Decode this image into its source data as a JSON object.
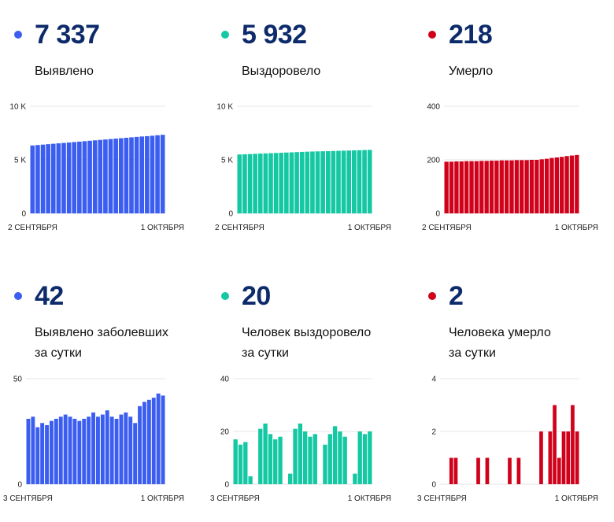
{
  "colors": {
    "blue": "#3b5ef0",
    "green": "#13c8a2",
    "red": "#d0021b",
    "navy": "#0d2b6b"
  },
  "panels": [
    {
      "value": "7 337",
      "label_lines": [
        "Выявлено"
      ],
      "color": "#3b5ef0"
    },
    {
      "value": "5 932",
      "label_lines": [
        "Выздоровело"
      ],
      "color": "#13c8a2"
    },
    {
      "value": "218",
      "label_lines": [
        "Умерло"
      ],
      "color": "#d0021b"
    },
    {
      "value": "42",
      "label_lines": [
        "Выявлено заболевших",
        "за сутки"
      ],
      "color": "#3b5ef0"
    },
    {
      "value": "20",
      "label_lines": [
        "Человек выздоровело",
        "за сутки"
      ],
      "color": "#13c8a2"
    },
    {
      "value": "2",
      "label_lines": [
        "Человека умерло",
        "за сутки"
      ],
      "color": "#d0021b"
    }
  ],
  "chart_data": [
    {
      "type": "bar",
      "color": "#3b5ef0",
      "ylim": [
        0,
        10000
      ],
      "ytick_labels": [
        "0",
        "5 K",
        "10 K"
      ],
      "ytick_values": [
        0,
        5000,
        10000
      ],
      "x_start_label": "2 СЕНТЯБРЯ",
      "x_end_label": "1 ОКТЯБРЯ",
      "values": [
        6340,
        6380,
        6420,
        6460,
        6500,
        6540,
        6580,
        6620,
        6660,
        6700,
        6740,
        6780,
        6820,
        6860,
        6900,
        6940,
        6980,
        7020,
        7060,
        7100,
        7140,
        7180,
        7210,
        7250,
        7295,
        7337
      ]
    },
    {
      "type": "bar",
      "color": "#13c8a2",
      "ylim": [
        0,
        10000
      ],
      "ytick_labels": [
        "0",
        "5 K",
        "10 K"
      ],
      "ytick_values": [
        0,
        5000,
        10000
      ],
      "x_start_label": "2 СЕНТЯБРЯ",
      "x_end_label": "1 ОКТЯБРЯ",
      "values": [
        5500,
        5520,
        5540,
        5560,
        5580,
        5600,
        5620,
        5640,
        5660,
        5680,
        5700,
        5720,
        5740,
        5760,
        5775,
        5790,
        5800,
        5810,
        5825,
        5840,
        5855,
        5870,
        5885,
        5900,
        5915,
        5932
      ]
    },
    {
      "type": "bar",
      "color": "#d0021b",
      "ylim": [
        0,
        400
      ],
      "ytick_labels": [
        "0",
        "200",
        "400"
      ],
      "ytick_values": [
        0,
        200,
        400
      ],
      "x_start_label": "2 СЕНТЯБРЯ",
      "x_end_label": "1 ОКТЯБРЯ",
      "values": [
        193,
        193,
        194,
        194,
        195,
        195,
        195,
        196,
        196,
        197,
        197,
        198,
        198,
        198,
        199,
        199,
        199,
        200,
        200,
        202,
        204,
        207,
        209,
        211,
        214,
        216,
        218
      ]
    },
    {
      "type": "bar",
      "color": "#3b5ef0",
      "ylim": [
        0,
        50
      ],
      "ytick_labels": [
        "0",
        "50"
      ],
      "ytick_values": [
        0,
        50
      ],
      "x_start_label": "3 СЕНТЯБРЯ",
      "x_end_label": "1 ОКТЯБРЯ",
      "values": [
        31,
        32,
        27,
        29,
        28,
        30,
        31,
        32,
        33,
        32,
        31,
        30,
        31,
        32,
        34,
        32,
        33,
        35,
        32,
        31,
        33,
        34,
        32,
        29,
        37,
        39,
        40,
        41,
        43,
        42
      ]
    },
    {
      "type": "bar",
      "color": "#13c8a2",
      "ylim": [
        0,
        40
      ],
      "ytick_labels": [
        "0",
        "20",
        "40"
      ],
      "ytick_values": [
        0,
        20,
        40
      ],
      "x_start_label": "3 СЕНТЯБРЯ",
      "x_end_label": "1 ОКТЯБРЯ",
      "values": [
        17,
        15,
        16,
        3,
        0,
        21,
        23,
        19,
        17,
        18,
        0,
        4,
        21,
        23,
        20,
        18,
        19,
        0,
        15,
        19,
        22,
        20,
        18,
        0,
        4,
        20,
        19,
        20
      ]
    },
    {
      "type": "bar",
      "color": "#d0021b",
      "ylim": [
        0,
        4
      ],
      "ytick_labels": [
        "0",
        "2",
        "4"
      ],
      "ytick_values": [
        0,
        2,
        4
      ],
      "x_start_label": "3 СЕНТЯБРЯ",
      "x_end_label": "1 ОКТЯБРЯ",
      "values": [
        0,
        0,
        1,
        1,
        0,
        0,
        0,
        0,
        1,
        0,
        1,
        0,
        0,
        0,
        0,
        1,
        0,
        1,
        0,
        0,
        0,
        0,
        2,
        0,
        2,
        3,
        1,
        2,
        2,
        3,
        2
      ]
    }
  ]
}
